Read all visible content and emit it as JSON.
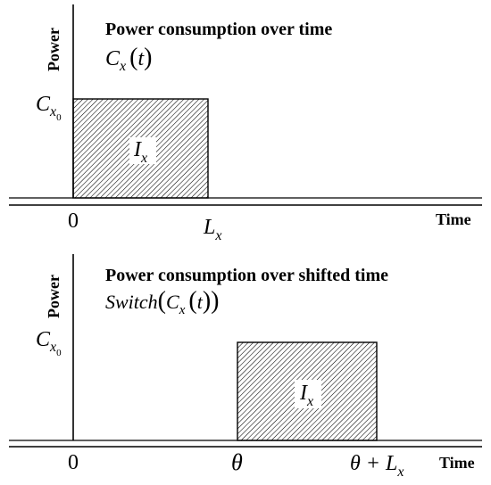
{
  "panels": [
    {
      "title": "Power consumption over time",
      "formula": {
        "name": "",
        "arg_var": "C",
        "arg_sub": "x",
        "arg_param": "t"
      },
      "y_axis_label": "Power",
      "x_axis_label": "Time",
      "y_level": {
        "var": "C",
        "sub": "x",
        "subsub": "0"
      },
      "x_ticks": [
        {
          "label": "0"
        },
        {
          "var": "L",
          "sub": "x"
        }
      ],
      "block": {
        "var": "I",
        "sub": "x",
        "start": "0",
        "end": "Lx"
      }
    },
    {
      "title": "Power consumption over shifted time",
      "formula": {
        "name": "Switch",
        "arg_var": "C",
        "arg_sub": "x",
        "arg_param": "t"
      },
      "y_axis_label": "Power",
      "x_axis_label": "Time",
      "y_level": {
        "var": "C",
        "sub": "x",
        "subsub": "0"
      },
      "x_ticks": [
        {
          "label": "0"
        },
        {
          "label": "θ"
        },
        {
          "label": "θ + L",
          "sub": "x"
        }
      ],
      "block": {
        "var": "I",
        "sub": "x",
        "start": "θ",
        "end": "θ+Lx"
      }
    }
  ],
  "colors": {
    "line": "#000000",
    "hatch": "#000000",
    "block_fill": "#ffffff"
  }
}
